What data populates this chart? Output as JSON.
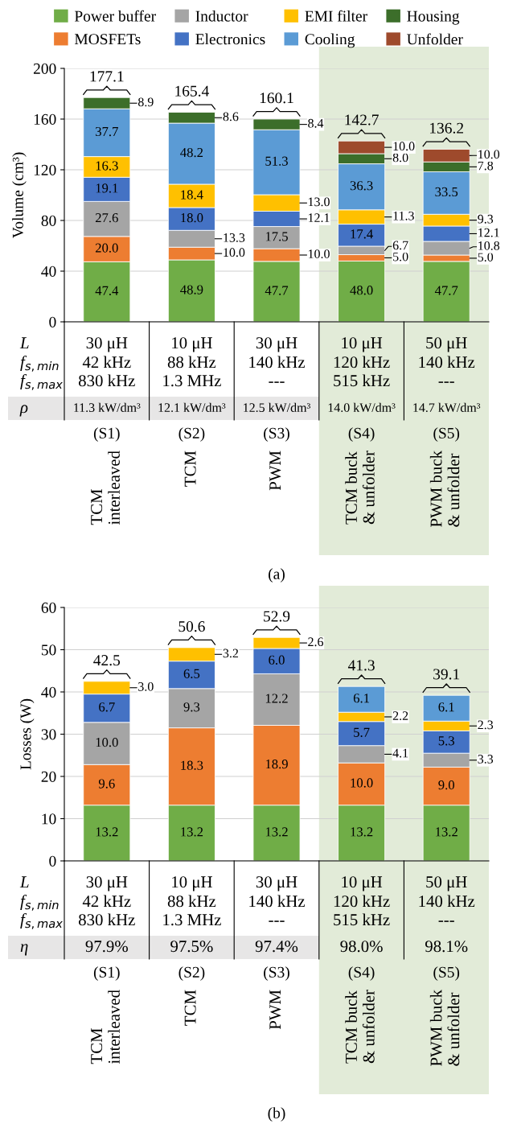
{
  "chart_data": [
    {
      "type": "bar",
      "stacked": true,
      "ylabel": "Volume (cm³)",
      "categories": [
        null,
        null,
        null,
        null,
        null
      ],
      "ylim": [
        0,
        200
      ],
      "yticks": [
        0,
        40,
        80,
        120,
        160,
        200
      ],
      "grid": "y",
      "legend": "top",
      "series": [
        {
          "name": "Power buffer",
          "color": "#70ad47",
          "values": [
            47.4,
            48.9,
            47.7,
            48.0,
            47.7
          ],
          "value_labels": [
            "47.4",
            "48.9",
            "47.7",
            "48.0",
            "47.7"
          ]
        },
        {
          "name": "MOSFETs",
          "color": "#ed7d31",
          "values": [
            20.0,
            10.0,
            10.0,
            5.0,
            5.0
          ],
          "value_labels": [
            "20.0",
            "10.0",
            "10.0",
            "5.0",
            "5.0"
          ]
        },
        {
          "name": "Inductor",
          "color": "#a5a5a5",
          "values": [
            27.6,
            13.3,
            17.5,
            6.7,
            10.8
          ],
          "value_labels": [
            "27.6",
            "13.3",
            "17.5",
            "6.7",
            "10.8"
          ]
        },
        {
          "name": "Electronics",
          "color": "#4472c4",
          "values": [
            19.1,
            18.0,
            12.1,
            17.4,
            12.1
          ],
          "value_labels": [
            "19.1",
            "18.0",
            "12.1",
            "17.4",
            "12.1"
          ]
        },
        {
          "name": "EMI filter",
          "color": "#ffc000",
          "values": [
            16.3,
            18.4,
            13.0,
            11.3,
            9.3
          ],
          "value_labels": [
            "16.3",
            "18.4",
            "13.0",
            "11.3",
            "9.3"
          ]
        },
        {
          "name": "Cooling",
          "color": "#5b9bd5",
          "values": [
            37.7,
            48.2,
            51.3,
            36.3,
            33.5
          ],
          "value_labels": [
            "37.7",
            "48.2",
            "51.3",
            "36.3",
            "33.5"
          ]
        },
        {
          "name": "Housing",
          "color": "#3c6e2a",
          "values": [
            8.9,
            8.6,
            8.4,
            8.0,
            7.8
          ],
          "value_labels": [
            "8.9",
            "8.6",
            "8.4",
            "8.0",
            "7.8"
          ]
        },
        {
          "name": "Unfolder",
          "color": "#9e4a2c",
          "values": [
            null,
            null,
            null,
            10.0,
            10.0
          ],
          "value_labels": [
            null,
            null,
            null,
            "10.0",
            "10.0"
          ]
        }
      ],
      "totals": [
        "177.1",
        "165.4",
        "160.1",
        "142.7",
        "136.2"
      ],
      "annotations": [
        "L",
        "f$_{s,min}$",
        "f$_{s,max}$",
        "ρ",
        "30 μH",
        "42 kHz",
        "830 kHz",
        "11.3 kW/dm³",
        "10 μH",
        "88 kHz",
        "1.3 MHz",
        "12.1 kW/dm³",
        "30 μH",
        "140 kHz",
        "---",
        "12.5 kW/dm³",
        "10 μH",
        "120 kHz",
        "515 kHz",
        "14.0 kW/dm³",
        "50 μH",
        "140 kHz",
        "---",
        "14.7 kW/dm³",
        "(S1)",
        "(S2)",
        "(S3)",
        "(S4)",
        "(S5)",
        "TCM\ninterleaved",
        "TCM",
        "PWM",
        "TCM buck\n& unfolder",
        "PWM buck\n& unfolder",
        "(a)"
      ]
    },
    {
      "type": "bar",
      "stacked": true,
      "ylabel": "Losses (W)",
      "categories": [
        null,
        null,
        null,
        null,
        null
      ],
      "ylim": [
        0,
        60
      ],
      "yticks": [
        0,
        10,
        20,
        30,
        40,
        50,
        60
      ],
      "grid": "y",
      "series": [
        {
          "color": "#70ad47",
          "values": [
            13.2,
            13.2,
            13.2,
            13.2,
            13.2
          ],
          "value_labels": [
            "13.2",
            "13.2",
            "13.2",
            "13.2",
            "13.2"
          ]
        },
        {
          "color": "#ed7d31",
          "values": [
            9.6,
            18.3,
            18.9,
            10.0,
            9.0
          ],
          "value_labels": [
            "9.6",
            "18.3",
            "18.9",
            "10.0",
            "9.0"
          ]
        },
        {
          "color": "#a5a5a5",
          "values": [
            10.0,
            9.3,
            12.2,
            4.1,
            3.3
          ],
          "value_labels": [
            "10.0",
            "9.3",
            "12.2",
            "4.1",
            "3.3"
          ]
        },
        {
          "color": "#4472c4",
          "values": [
            6.7,
            6.5,
            6.0,
            5.7,
            5.3
          ],
          "value_labels": [
            "6.7",
            "6.5",
            "6.0",
            "5.7",
            "5.3"
          ]
        },
        {
          "color": "#ffc000",
          "values": [
            3.0,
            3.2,
            2.6,
            2.2,
            2.3
          ],
          "value_labels": [
            "3.0",
            "3.2",
            "2.6",
            "2.2",
            "2.3"
          ]
        },
        {
          "color": "#5b9bd5",
          "values": [
            null,
            null,
            null,
            6.1,
            6.1
          ],
          "value_labels": [
            null,
            null,
            null,
            "6.1",
            "6.1"
          ]
        }
      ],
      "totals": [
        "42.5",
        "50.6",
        "52.9",
        "41.3",
        "39.1"
      ],
      "annotations": [
        "L",
        "f$_{s,min}$",
        "f$_{s,max}$",
        "η",
        "30 μH",
        "42 kHz",
        "830 kHz",
        "97.9%",
        "10 μH",
        "88 kHz",
        "1.3 MHz",
        "97.5%",
        "30 μH",
        "140 kHz",
        "---",
        "97.4%",
        "10 μH",
        "120 kHz",
        "515 kHz",
        "98.0%",
        "50 μH",
        "140 kHz",
        "---",
        "98.1%",
        "(S1)",
        "(S2)",
        "(S3)",
        "(S4)",
        "(S5)",
        "TCM\ninterleaved",
        "TCM",
        "PWM",
        "TCM buck\n& unfolder",
        "PWM buck\n& unfolder",
        "(b)"
      ]
    }
  ]
}
